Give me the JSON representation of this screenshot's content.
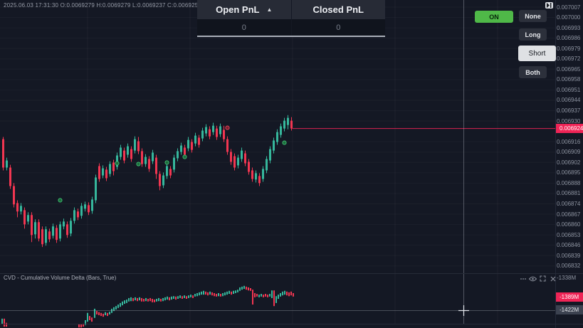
{
  "window": {
    "title": "Trading chart with PnL panel and CVD indicator"
  },
  "colors": {
    "background": "#141824",
    "up_candle": "#36b79c",
    "down_candle": "#f23651",
    "price_label_pink": "#ef2456",
    "on_button_green": "#4fb848",
    "selected_mode_bg": "#dfe1e4",
    "mode_button_bg": "#2c303b"
  },
  "ohlc_bar": {
    "text": "2025.06.03 17:31:30 O:0.0069279 H:0.0069279 L:0.0069237 C:0.0069251 V:3M"
  },
  "pnl": {
    "open_label": "Open PnL",
    "caret": "▲",
    "closed_label": "Closed PnL",
    "open_value": "0",
    "closed_value": "0"
  },
  "controls": {
    "on_label": "ON",
    "modes": [
      "None",
      "Long",
      "Short",
      "Both"
    ],
    "selected_mode": "Short"
  },
  "price_scale": {
    "current_label": "0.006924"
  },
  "cvd_panel": {
    "title": "CVD - Cumulative Volume Delta (Bars, True)",
    "axis_top_label": "-1338M",
    "current_label": "-1389M",
    "crosshair_label": "-1422M",
    "icons": [
      "more-icon",
      "eye-icon",
      "maximize-icon",
      "close-icon"
    ]
  },
  "chart_data": {
    "type": "candlestick",
    "price_axis_ticks": [
      "0.007007",
      "0.007000",
      "0.006993",
      "0.006986",
      "0.006979",
      "0.006972",
      "0.006965",
      "0.006958",
      "0.006951",
      "0.006944",
      "0.006937",
      "0.006930",
      "0.006916",
      "0.006909",
      "0.006902",
      "0.006895",
      "0.006888",
      "0.006881",
      "0.006874",
      "0.006867",
      "0.006860",
      "0.006853",
      "0.006846",
      "0.006839",
      "0.006832"
    ],
    "price_line": 0.0069249,
    "candles": [
      [
        0.0069177,
        0.0069192,
        0.0068966,
        0.0068985
      ],
      [
        0.0068985,
        0.0069052,
        0.0068966,
        0.0069033
      ],
      [
        0.0068985,
        0.0069004,
        0.0068841,
        0.006886
      ],
      [
        0.006886,
        0.006888,
        0.0068716,
        0.0068736
      ],
      [
        0.0068745,
        0.0068764,
        0.0068649,
        0.0068688
      ],
      [
        0.0068688,
        0.0068745,
        0.0068668,
        0.0068726
      ],
      [
        0.0068697,
        0.0068716,
        0.0068572,
        0.0068601
      ],
      [
        0.006862,
        0.0068683,
        0.0068601,
        0.0068664
      ],
      [
        0.0068664,
        0.0068683,
        0.0068481,
        0.0068529
      ],
      [
        0.0068534,
        0.0068635,
        0.0068505,
        0.0068616
      ],
      [
        0.0068616,
        0.0068635,
        0.0068486,
        0.0068505
      ],
      [
        0.0068568,
        0.0068587,
        0.0068448,
        0.0068467
      ],
      [
        0.0068476,
        0.0068587,
        0.0068457,
        0.0068568
      ],
      [
        0.0068553,
        0.0068572,
        0.0068481,
        0.00685
      ],
      [
        0.0068524,
        0.0068606,
        0.0068505,
        0.0068587
      ],
      [
        0.0068577,
        0.0068596,
        0.0068476,
        0.0068496
      ],
      [
        0.0068505,
        0.006862,
        0.0068486,
        0.0068601
      ],
      [
        0.0068587,
        0.006864,
        0.0068568,
        0.006862
      ],
      [
        0.0068601,
        0.006862,
        0.006851,
        0.0068529
      ],
      [
        0.0068539,
        0.0068644,
        0.006852,
        0.0068625
      ],
      [
        0.0068625,
        0.0068716,
        0.0068606,
        0.0068697
      ],
      [
        0.0068688,
        0.0068707,
        0.006863,
        0.0068649
      ],
      [
        0.0068659,
        0.0068745,
        0.006864,
        0.0068726
      ],
      [
        0.0068707,
        0.0068755,
        0.0068688,
        0.0068736
      ],
      [
        0.0068731,
        0.006875,
        0.0068664,
        0.0068683
      ],
      [
        0.0068692,
        0.0068788,
        0.0068673,
        0.0068769
      ],
      [
        0.0068764,
        0.0068937,
        0.0068745,
        0.0068918
      ],
      [
        0.0068995,
        0.0069014,
        0.0068889,
        0.0068908
      ],
      [
        0.0068932,
        0.0069,
        0.0068913,
        0.006898
      ],
      [
        0.0068971,
        0.006899,
        0.0068894,
        0.0068913
      ],
      [
        0.0068942,
        0.0069028,
        0.0068923,
        0.0069009
      ],
      [
        0.0069019,
        0.0069038,
        0.0068932,
        0.0068961
      ],
      [
        0.006899,
        0.0069086,
        0.0068971,
        0.0069067
      ],
      [
        0.0069057,
        0.0069139,
        0.0069038,
        0.006912
      ],
      [
        0.00691,
        0.006912,
        0.0069014,
        0.0069033
      ],
      [
        0.0069072,
        0.0069148,
        0.0069052,
        0.0069129
      ],
      [
        0.006911,
        0.0069129,
        0.0069024,
        0.0069043
      ],
      [
        0.00691,
        0.0069196,
        0.0069081,
        0.0069177
      ],
      [
        0.0069163,
        0.0069192,
        0.0069076,
        0.0069096
      ],
      [
        0.0069096,
        0.0069115,
        0.006899,
        0.0069009
      ],
      [
        0.0069009,
        0.0069076,
        0.006899,
        0.0069057
      ],
      [
        0.0069043,
        0.0069062,
        0.0068956,
        0.0068976
      ],
      [
        0.0069028,
        0.0069105,
        0.0069009,
        0.0069086
      ],
      [
        0.0069052,
        0.0069072,
        0.0068908,
        0.0068942
      ],
      [
        0.0068942,
        0.0068961,
        0.0068832,
        0.006886
      ],
      [
        0.0068865,
        0.0068952,
        0.0068846,
        0.0068932
      ],
      [
        0.0068928,
        0.0069014,
        0.0068908,
        0.0068995
      ],
      [
        0.0068976,
        0.0068995,
        0.0068913,
        0.0068932
      ],
      [
        0.0068971,
        0.0069072,
        0.0068952,
        0.0069052
      ],
      [
        0.0069048,
        0.0069115,
        0.0069028,
        0.0069096
      ],
      [
        0.0069091,
        0.0069153,
        0.0069072,
        0.0069134
      ],
      [
        0.006912,
        0.0069139,
        0.0069052,
        0.0069072
      ],
      [
        0.0069115,
        0.0069192,
        0.0069096,
        0.0069172
      ],
      [
        0.0069158,
        0.0069177,
        0.0069086,
        0.0069105
      ],
      [
        0.0069148,
        0.006922,
        0.0069129,
        0.0069201
      ],
      [
        0.0069187,
        0.0069206,
        0.006912,
        0.0069139
      ],
      [
        0.0069182,
        0.0069254,
        0.0069163,
        0.0069235
      ],
      [
        0.0069216,
        0.0069278,
        0.0069196,
        0.0069259
      ],
      [
        0.0069244,
        0.0069264,
        0.0069177,
        0.0069196
      ],
      [
        0.0069225,
        0.0069288,
        0.0069206,
        0.0069268
      ],
      [
        0.0069249,
        0.0069268,
        0.0069172,
        0.0069192
      ],
      [
        0.0069211,
        0.0069283,
        0.0069192,
        0.0069264
      ],
      [
        0.006924,
        0.0069268,
        0.0069158,
        0.0069177
      ],
      [
        0.0069177,
        0.0069196,
        0.0069072,
        0.0069091
      ],
      [
        0.0069091,
        0.006911,
        0.0069004,
        0.0069024
      ],
      [
        0.0069062,
        0.0069081,
        0.0068966,
        0.0068985
      ],
      [
        0.0069,
        0.0069072,
        0.006898,
        0.0069052
      ],
      [
        0.0069043,
        0.006912,
        0.0069024,
        0.00691
      ],
      [
        0.0069081,
        0.00691,
        0.0068995,
        0.0069014
      ],
      [
        0.0069024,
        0.0069043,
        0.0068937,
        0.0068956
      ],
      [
        0.0068966,
        0.0068985,
        0.0068889,
        0.0068908
      ],
      [
        0.0068904,
        0.0068966,
        0.0068884,
        0.0068947
      ],
      [
        0.0068928,
        0.0068947,
        0.006886,
        0.006888
      ],
      [
        0.0068908,
        0.0068995,
        0.0068889,
        0.0068976
      ],
      [
        0.0068966,
        0.0069062,
        0.0068947,
        0.0069043
      ],
      [
        0.0069033,
        0.0069129,
        0.0069014,
        0.006911
      ],
      [
        0.00691,
        0.0069187,
        0.0069081,
        0.0069168
      ],
      [
        0.0069158,
        0.0069244,
        0.0069139,
        0.0069225
      ],
      [
        0.0069206,
        0.0069283,
        0.0069187,
        0.0069264
      ],
      [
        0.0069249,
        0.0069321,
        0.006923,
        0.0069302
      ],
      [
        0.0069273,
        0.006934,
        0.0069244,
        0.0069321
      ],
      [
        0.0069302,
        0.0069326,
        0.0069235,
        0.0069249
      ]
    ],
    "markers": [
      {
        "candle": 16,
        "price": 0.0068764,
        "type": "buy"
      },
      {
        "candle": 32,
        "price": 0.0069014,
        "type": "buy"
      },
      {
        "candle": 38,
        "price": 0.0069009,
        "type": "buy"
      },
      {
        "candle": 46,
        "price": 0.0069019,
        "type": "buy"
      },
      {
        "candle": 51,
        "price": 0.0069057,
        "type": "buy"
      },
      {
        "candle": 63,
        "price": 0.0069254,
        "type": "sell"
      },
      {
        "candle": 79,
        "price": 0.0069153,
        "type": "buy"
      }
    ],
    "cvd": {
      "type": "bar",
      "unit": "M",
      "bars": [
        [
          3,
          -1446,
          -1461,
          "g"
        ],
        [
          6,
          -1446,
          -1467,
          "r"
        ],
        [
          9,
          -1457,
          -1467,
          "r"
        ],
        [
          111,
          -1461,
          -1469,
          "r"
        ],
        [
          114,
          -1461,
          -1469,
          "r"
        ],
        [
          117,
          -1459,
          -1467,
          "r"
        ],
        [
          120,
          -1450,
          -1463,
          "g"
        ],
        [
          123,
          -1431,
          -1454,
          "g"
        ],
        [
          126,
          -1439,
          -1450,
          "r"
        ],
        [
          129,
          -1443,
          -1454,
          "r"
        ],
        [
          133,
          -1420,
          -1444,
          "g"
        ],
        [
          136,
          -1426,
          -1435,
          "r"
        ],
        [
          139,
          -1429,
          -1437,
          "r"
        ],
        [
          142,
          -1431,
          -1439,
          "r"
        ],
        [
          145,
          -1433,
          -1441,
          "r"
        ],
        [
          148,
          -1429,
          -1437,
          "g"
        ],
        [
          151,
          -1431,
          -1439,
          "r"
        ],
        [
          154,
          -1428,
          -1435,
          "g"
        ],
        [
          157,
          -1420,
          -1431,
          "g"
        ],
        [
          160,
          -1416,
          -1426,
          "g"
        ],
        [
          163,
          -1413,
          -1422,
          "g"
        ],
        [
          166,
          -1409,
          -1418,
          "g"
        ],
        [
          169,
          -1405,
          -1415,
          "g"
        ],
        [
          172,
          -1401,
          -1411,
          "g"
        ],
        [
          175,
          -1398,
          -1407,
          "g"
        ],
        [
          178,
          -1396,
          -1405,
          "g"
        ],
        [
          181,
          -1392,
          -1401,
          "g"
        ],
        [
          184,
          -1390,
          -1400,
          "g"
        ],
        [
          187,
          -1392,
          -1400,
          "r"
        ],
        [
          190,
          -1390,
          -1398,
          "g"
        ],
        [
          193,
          -1392,
          -1400,
          "r"
        ],
        [
          196,
          -1390,
          -1398,
          "g"
        ],
        [
          199,
          -1392,
          -1401,
          "r"
        ],
        [
          202,
          -1394,
          -1401,
          "r"
        ],
        [
          205,
          -1392,
          -1400,
          "g"
        ],
        [
          208,
          -1394,
          -1401,
          "r"
        ],
        [
          211,
          -1392,
          -1400,
          "r"
        ],
        [
          214,
          -1394,
          -1403,
          "r"
        ],
        [
          217,
          -1396,
          -1403,
          "r"
        ],
        [
          220,
          -1394,
          -1401,
          "g"
        ],
        [
          223,
          -1392,
          -1400,
          "g"
        ],
        [
          226,
          -1394,
          -1401,
          "r"
        ],
        [
          229,
          -1392,
          -1400,
          "g"
        ],
        [
          232,
          -1390,
          -1398,
          "g"
        ],
        [
          235,
          -1388,
          -1396,
          "g"
        ],
        [
          238,
          -1390,
          -1398,
          "r"
        ],
        [
          241,
          -1388,
          -1396,
          "g"
        ],
        [
          244,
          -1387,
          -1394,
          "g"
        ],
        [
          247,
          -1388,
          -1396,
          "r"
        ],
        [
          250,
          -1387,
          -1394,
          "g"
        ],
        [
          253,
          -1385,
          -1392,
          "g"
        ],
        [
          256,
          -1387,
          -1394,
          "r"
        ],
        [
          259,
          -1385,
          -1392,
          "g"
        ],
        [
          262,
          -1387,
          -1394,
          "r"
        ],
        [
          265,
          -1385,
          -1392,
          "g"
        ],
        [
          268,
          -1383,
          -1390,
          "g"
        ],
        [
          271,
          -1385,
          -1392,
          "r"
        ],
        [
          274,
          -1381,
          -1388,
          "g"
        ],
        [
          277,
          -1379,
          -1387,
          "g"
        ],
        [
          280,
          -1377,
          -1385,
          "g"
        ],
        [
          283,
          -1375,
          -1383,
          "g"
        ],
        [
          286,
          -1373,
          -1383,
          "g"
        ],
        [
          289,
          -1375,
          -1383,
          "r"
        ],
        [
          292,
          -1377,
          -1385,
          "r"
        ],
        [
          295,
          -1375,
          -1383,
          "g"
        ],
        [
          298,
          -1377,
          -1385,
          "r"
        ],
        [
          301,
          -1379,
          -1387,
          "r"
        ],
        [
          304,
          -1381,
          -1388,
          "r"
        ],
        [
          307,
          -1379,
          -1387,
          "g"
        ],
        [
          310,
          -1381,
          -1388,
          "r"
        ],
        [
          313,
          -1379,
          -1387,
          "g"
        ],
        [
          316,
          -1377,
          -1385,
          "g"
        ],
        [
          319,
          -1375,
          -1383,
          "g"
        ],
        [
          322,
          -1373,
          -1381,
          "g"
        ],
        [
          325,
          -1375,
          -1383,
          "r"
        ],
        [
          328,
          -1373,
          -1381,
          "g"
        ],
        [
          331,
          -1372,
          -1379,
          "g"
        ],
        [
          334,
          -1370,
          -1377,
          "g"
        ],
        [
          337,
          -1364,
          -1373,
          "g"
        ],
        [
          340,
          -1362,
          -1370,
          "g"
        ],
        [
          343,
          -1360,
          -1368,
          "g"
        ],
        [
          346,
          -1362,
          -1370,
          "r"
        ],
        [
          349,
          -1364,
          -1372,
          "r"
        ],
        [
          352,
          -1366,
          -1373,
          "r"
        ],
        [
          355,
          -1370,
          -1409,
          "r"
        ],
        [
          358,
          -1379,
          -1390,
          "r"
        ],
        [
          361,
          -1381,
          -1388,
          "r"
        ],
        [
          364,
          -1383,
          -1390,
          "g"
        ],
        [
          367,
          -1381,
          -1388,
          "g"
        ],
        [
          370,
          -1383,
          -1390,
          "r"
        ],
        [
          373,
          -1381,
          -1388,
          "r"
        ],
        [
          376,
          -1383,
          -1390,
          "r"
        ],
        [
          379,
          -1381,
          -1388,
          "g"
        ],
        [
          382,
          -1372,
          -1392,
          "g"
        ],
        [
          385,
          -1372,
          -1413,
          "r"
        ],
        [
          388,
          -1387,
          -1405,
          "g"
        ],
        [
          391,
          -1383,
          -1394,
          "g"
        ],
        [
          394,
          -1379,
          -1388,
          "g"
        ],
        [
          397,
          -1375,
          -1385,
          "g"
        ],
        [
          400,
          -1373,
          -1383,
          "g"
        ],
        [
          403,
          -1375,
          -1385,
          "r"
        ],
        [
          406,
          -1377,
          -1387,
          "r"
        ],
        [
          409,
          -1375,
          -1385,
          "r"
        ],
        [
          412,
          -1379,
          -1388,
          "r"
        ]
      ]
    }
  }
}
